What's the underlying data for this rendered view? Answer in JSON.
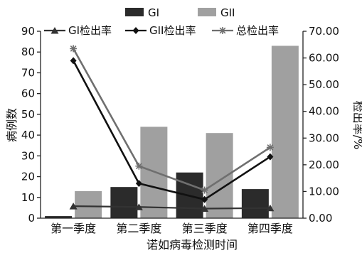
{
  "chart_data": {
    "type": "bar",
    "xlabel": "诺如病毒检测时间",
    "ylabel": "病例数",
    "y2label": "检出率/%",
    "ylim": [
      0,
      90
    ],
    "y2lim": [
      0,
      70
    ],
    "yticks": [
      "0",
      "10",
      "20",
      "30",
      "40",
      "50",
      "60",
      "70",
      "80",
      "90"
    ],
    "y2ticks": [
      "0.00",
      "10.00",
      "20.00",
      "30.00",
      "40.00",
      "50.00",
      "60.00",
      "70.00"
    ],
    "categories": [
      "第一季度",
      "第二季度",
      "第三季度",
      "第四季度"
    ],
    "bar_series": [
      {
        "name": "GI",
        "values": [
          1,
          15,
          22,
          14
        ],
        "color": "#2b2b2b"
      },
      {
        "name": "GII",
        "values": [
          13,
          44,
          41,
          83
        ],
        "color": "#a0a0a0"
      }
    ],
    "line_series": [
      {
        "name": "GI检出率",
        "values": [
          4.5,
          4.2,
          3.6,
          3.8
        ],
        "color": "#333333",
        "marker": "triangle"
      },
      {
        "name": "GII检出率",
        "values": [
          59.0,
          13.0,
          7.0,
          23.0
        ],
        "color": "#111111",
        "marker": "diamond"
      },
      {
        "name": "总检出率",
        "values": [
          63.5,
          19.5,
          10.5,
          26.5
        ],
        "color": "#6f6f6f",
        "marker": "star"
      }
    ],
    "legend": "top"
  }
}
